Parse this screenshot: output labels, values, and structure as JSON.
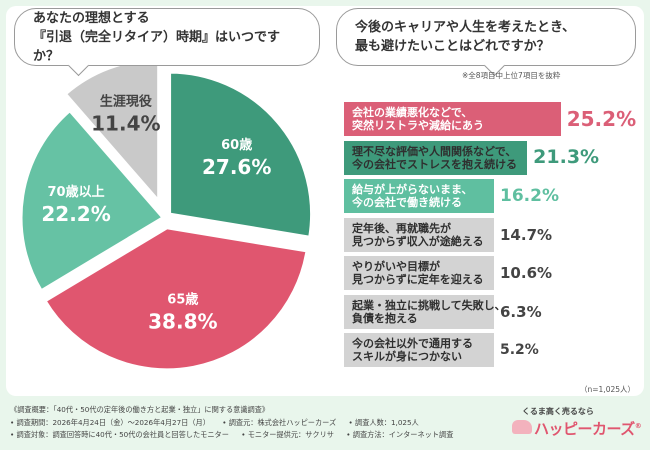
{
  "colors": {
    "teal_dark": "#3e9a7b",
    "pink": "#e0566f",
    "teal_light": "#66c2a4",
    "gray": "#c9c9c9",
    "bar_pink": "#db5f77",
    "bar_teal": "#3e9a7b",
    "bar_teal_light": "#5fbfa0",
    "bar_gray": "#d3d3d3"
  },
  "left": {
    "question_line1": "あなたの理想とする",
    "question_line2": "『引退（完全リタイア）時期』はいつですか？"
  },
  "right": {
    "question_line1": "今後のキャリアや人生を考えたとき、",
    "question_line2": "最も避けたいことはどれですか？",
    "sub_note": "※全8項目中上位7項目を抜粋",
    "n_note": "（n=1,025人）"
  },
  "chart_data": [
    {
      "type": "pie",
      "labels": [
        "60歳",
        "65歳",
        "70歳以上",
        "生涯現役"
      ],
      "value_labels": [
        "27.6%",
        "38.8%",
        "22.2%",
        "11.4%"
      ],
      "values": [
        27.6,
        38.8,
        22.2,
        11.4
      ],
      "colors": [
        "#3e9a7b",
        "#e0566f",
        "#66c2a4",
        "#c9c9c9"
      ]
    },
    {
      "type": "bar",
      "orientation": "horizontal",
      "categories": [
        [
          "会社の業績悪化などで、",
          "突然リストラや減給にあう"
        ],
        [
          "理不尽な評価や人間関係などで、",
          "今の会社でストレスを抱え続ける"
        ],
        [
          "給与が上がらないまま、",
          "今の会社で働き続ける"
        ],
        [
          "定年後、再就職先が",
          "見つからず収入が途絶える"
        ],
        [
          "やりがいや目標が",
          "見つからずに定年を迎える"
        ],
        [
          "起業・独立に挑戦して失敗し、",
          "負債を抱える"
        ],
        [
          "今の会社以外で通用する",
          "スキルが身につかない"
        ]
      ],
      "value_labels": [
        "25.2%",
        "21.3%",
        "16.2%",
        "14.7%",
        "10.6%",
        "6.3%",
        "5.2%"
      ],
      "values": [
        25.2,
        21.3,
        16.2,
        14.7,
        10.6,
        6.3,
        5.2
      ],
      "colors": [
        "#db5f77",
        "#3e9a7b",
        "#5fbfa0",
        "#d3d3d3",
        "#d3d3d3",
        "#d3d3d3",
        "#d3d3d3"
      ],
      "value_colors": [
        "#db5f77",
        "#3e9a7b",
        "#5fbfa0",
        "#444444",
        "#444444",
        "#444444",
        "#444444"
      ],
      "label_colors": [
        "#ffffff",
        "#2f2f2f",
        "#ffffff",
        "#2f2f2f",
        "#2f2f2f",
        "#2f2f2f",
        "#2f2f2f"
      ]
    }
  ],
  "footer": {
    "line1": "《調査概要：「40代・50代の定年後の働き方と起業・独立」に関する意識調査》",
    "period": "• 調査期間：2026年4月24日（金）～2026年4月27日（月）",
    "organizer": "• 調査元：株式会社ハッピーカーズ",
    "count": "• 調査人数：1,025人",
    "target": "• 調査対象：調査回答時に40代・50代の会社員と回答したモニター",
    "provider": "• モニター提供元：サクリサ",
    "method": "• 調査方法：インターネット調査"
  },
  "logo": {
    "tagline": "くるま高く売るなら",
    "name": "ハッピーカーズ",
    "mark": "®"
  }
}
